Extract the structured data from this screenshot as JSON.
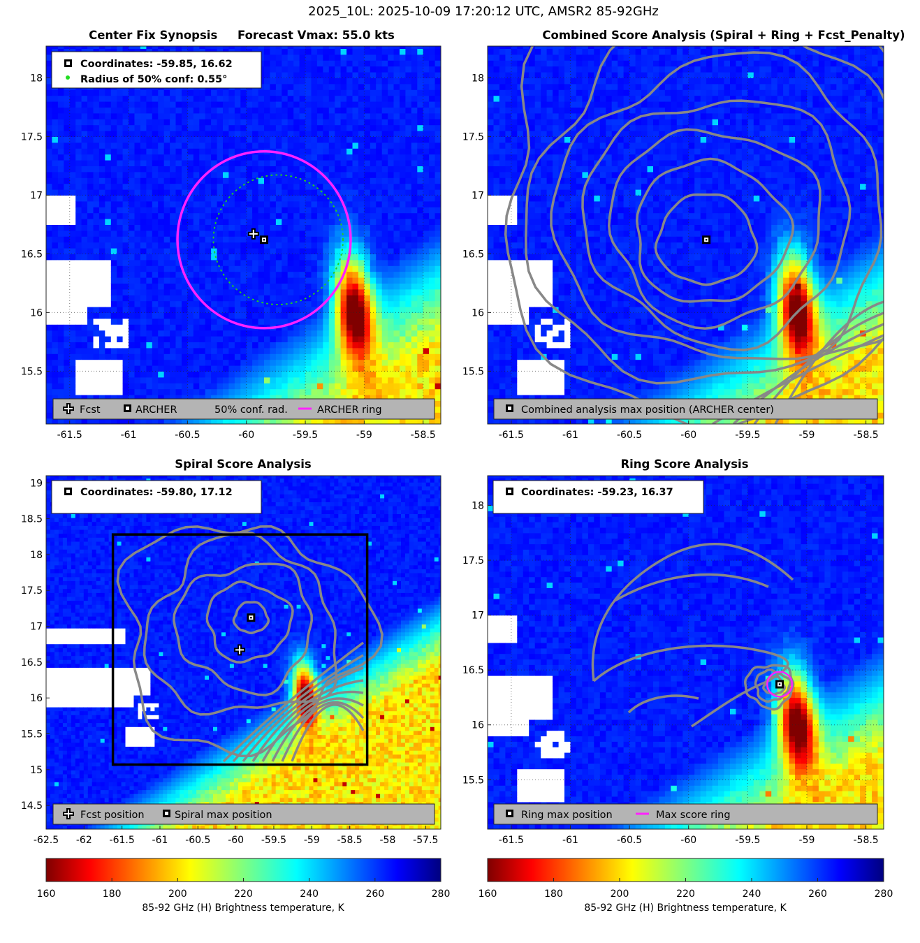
{
  "figure": {
    "suptitle": "2025_10L: 2025-10-09 17:20:12 UTC, AMSR2 85-92GHz"
  },
  "colors": {
    "colormap": "jet",
    "contour": "#888888",
    "archer_ring": "#ff22ff",
    "conf_ring": "#22cc22",
    "legend_bg": "#b4b4b4"
  },
  "chart_data": [
    {
      "id": "p1",
      "type": "heatmap",
      "title": "Center Fix Synopsis     Forecast Vmax: 55.0 kts",
      "xlim": [
        -61.7,
        -58.35
      ],
      "ylim": [
        15.05,
        18.27
      ],
      "xticks": [
        -61.5,
        -61,
        -60.5,
        -60,
        -59.5,
        -59,
        -58.5
      ],
      "yticks": [
        15.5,
        16,
        16.5,
        17,
        17.5,
        18
      ],
      "info": [
        {
          "icon": "archer-icon",
          "text": "Coordinates: -59.85, 16.62"
        },
        {
          "icon": "green-dot-icon",
          "text": "Radius of 50% conf: 0.55°"
        }
      ],
      "legend": [
        {
          "icon": "plus-icon",
          "label": "Fcst"
        },
        {
          "icon": "archer-icon",
          "label": "ARCHER"
        },
        {
          "icon": "none",
          "label": "50% conf. rad."
        },
        {
          "icon": "magenta-line-icon",
          "label": "ARCHER ring"
        }
      ],
      "fcst": [
        -59.94,
        16.67
      ],
      "center": [
        -59.85,
        16.62
      ],
      "archer_ring_radius_deg": 0.75,
      "conf_radius_deg": 0.55,
      "grid": true
    },
    {
      "id": "p2",
      "type": "heatmap",
      "title": "Combined Score Analysis (Spiral + Ring + Fcst_Penalty)",
      "xlim": [
        -61.7,
        -58.35
      ],
      "ylim": [
        15.05,
        18.27
      ],
      "xticks": [
        -61.5,
        -61,
        -60.5,
        -60,
        -59.5,
        -59,
        -58.5
      ],
      "yticks": [
        15.5,
        16,
        16.5,
        17,
        17.5,
        18
      ],
      "legend": [
        {
          "icon": "archer-icon",
          "label": "Combined analysis max position (ARCHER center)"
        }
      ],
      "center": [
        -59.85,
        16.62
      ],
      "contours": "concentric",
      "grid": true
    },
    {
      "id": "p3",
      "type": "heatmap",
      "title": "Spiral Score Analysis",
      "xlim": [
        -62.5,
        -57.3
      ],
      "ylim": [
        14.17,
        19.1
      ],
      "xticks": [
        -62.5,
        -62,
        -61.5,
        -61,
        -60.5,
        -60,
        -59.5,
        -59,
        -58.5,
        -58,
        -57.5
      ],
      "yticks": [
        14.5,
        15,
        15.5,
        16,
        16.5,
        17,
        17.5,
        18,
        18.5,
        19
      ],
      "info": [
        {
          "icon": "archer-icon",
          "text": "Coordinates: -59.80, 17.12"
        }
      ],
      "legend": [
        {
          "icon": "plus-icon",
          "label": "Fcst position"
        },
        {
          "icon": "archer-icon",
          "label": "Spiral max position"
        }
      ],
      "fcst": [
        -59.95,
        16.67
      ],
      "center": [
        -59.8,
        17.12
      ],
      "search_box": [
        [
          -61.62,
          15.07
        ],
        [
          -58.27,
          18.28
        ]
      ],
      "grid": false
    },
    {
      "id": "p4",
      "type": "heatmap",
      "title": "Ring Score Analysis",
      "xlim": [
        -61.7,
        -58.35
      ],
      "ylim": [
        15.05,
        18.27
      ],
      "xticks": [
        -61.5,
        -61,
        -60.5,
        -60,
        -59.5,
        -59,
        -58.5
      ],
      "yticks": [
        15.5,
        16,
        16.5,
        17,
        17.5,
        18
      ],
      "info": [
        {
          "icon": "archer-icon",
          "text": "Coordinates: -59.23, 16.37"
        }
      ],
      "legend": [
        {
          "icon": "archer-icon",
          "label": "Ring max position"
        },
        {
          "icon": "magenta-line-icon",
          "label": "Max score ring"
        }
      ],
      "center": [
        -59.23,
        16.37
      ],
      "max_ring_radius_deg": 0.1,
      "grid": true
    }
  ],
  "colorbars": [
    {
      "id": "cb1",
      "range": [
        160,
        280
      ],
      "ticks": [
        160,
        180,
        200,
        220,
        240,
        260,
        280
      ],
      "label": "85-92 GHz (H) Brightness temperature, K"
    },
    {
      "id": "cb2",
      "range": [
        160,
        280
      ],
      "ticks": [
        160,
        180,
        200,
        220,
        240,
        260,
        280
      ],
      "label": "85-92 GHz (H) Brightness temperature, K"
    }
  ]
}
